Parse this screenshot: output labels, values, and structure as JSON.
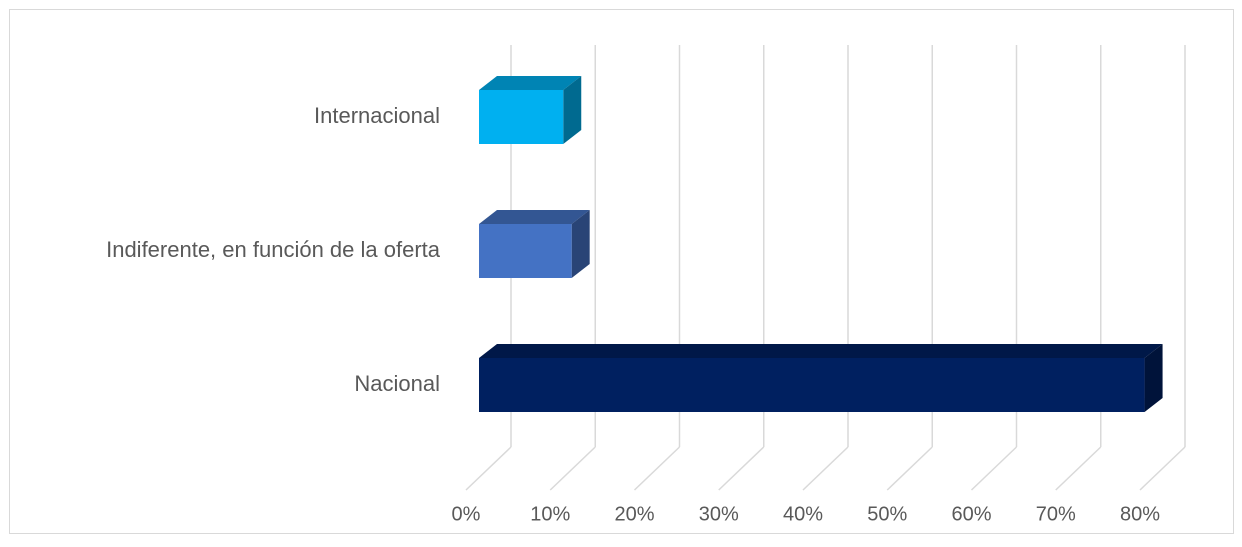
{
  "chart_data": {
    "type": "bar3d_horizontal",
    "categories": [
      "Nacional",
      "Indiferente, en función de la oferta",
      "Internacional"
    ],
    "series": [
      {
        "name": null,
        "values": [
          79,
          11,
          10
        ],
        "colors": [
          "#002060",
          "#4472c4",
          "#00b0f0"
        ]
      }
    ],
    "xlim": [
      0,
      80
    ],
    "xticks": [
      {
        "value": 0,
        "label": "0%"
      },
      {
        "value": 10,
        "label": "10%"
      },
      {
        "value": 20,
        "label": "20%"
      },
      {
        "value": 30,
        "label": "30%"
      },
      {
        "value": 40,
        "label": "40%"
      },
      {
        "value": 50,
        "label": "50%"
      },
      {
        "value": 60,
        "label": "60%"
      },
      {
        "value": 70,
        "label": "70%"
      },
      {
        "value": 80,
        "label": "80%"
      }
    ],
    "grid": true
  }
}
